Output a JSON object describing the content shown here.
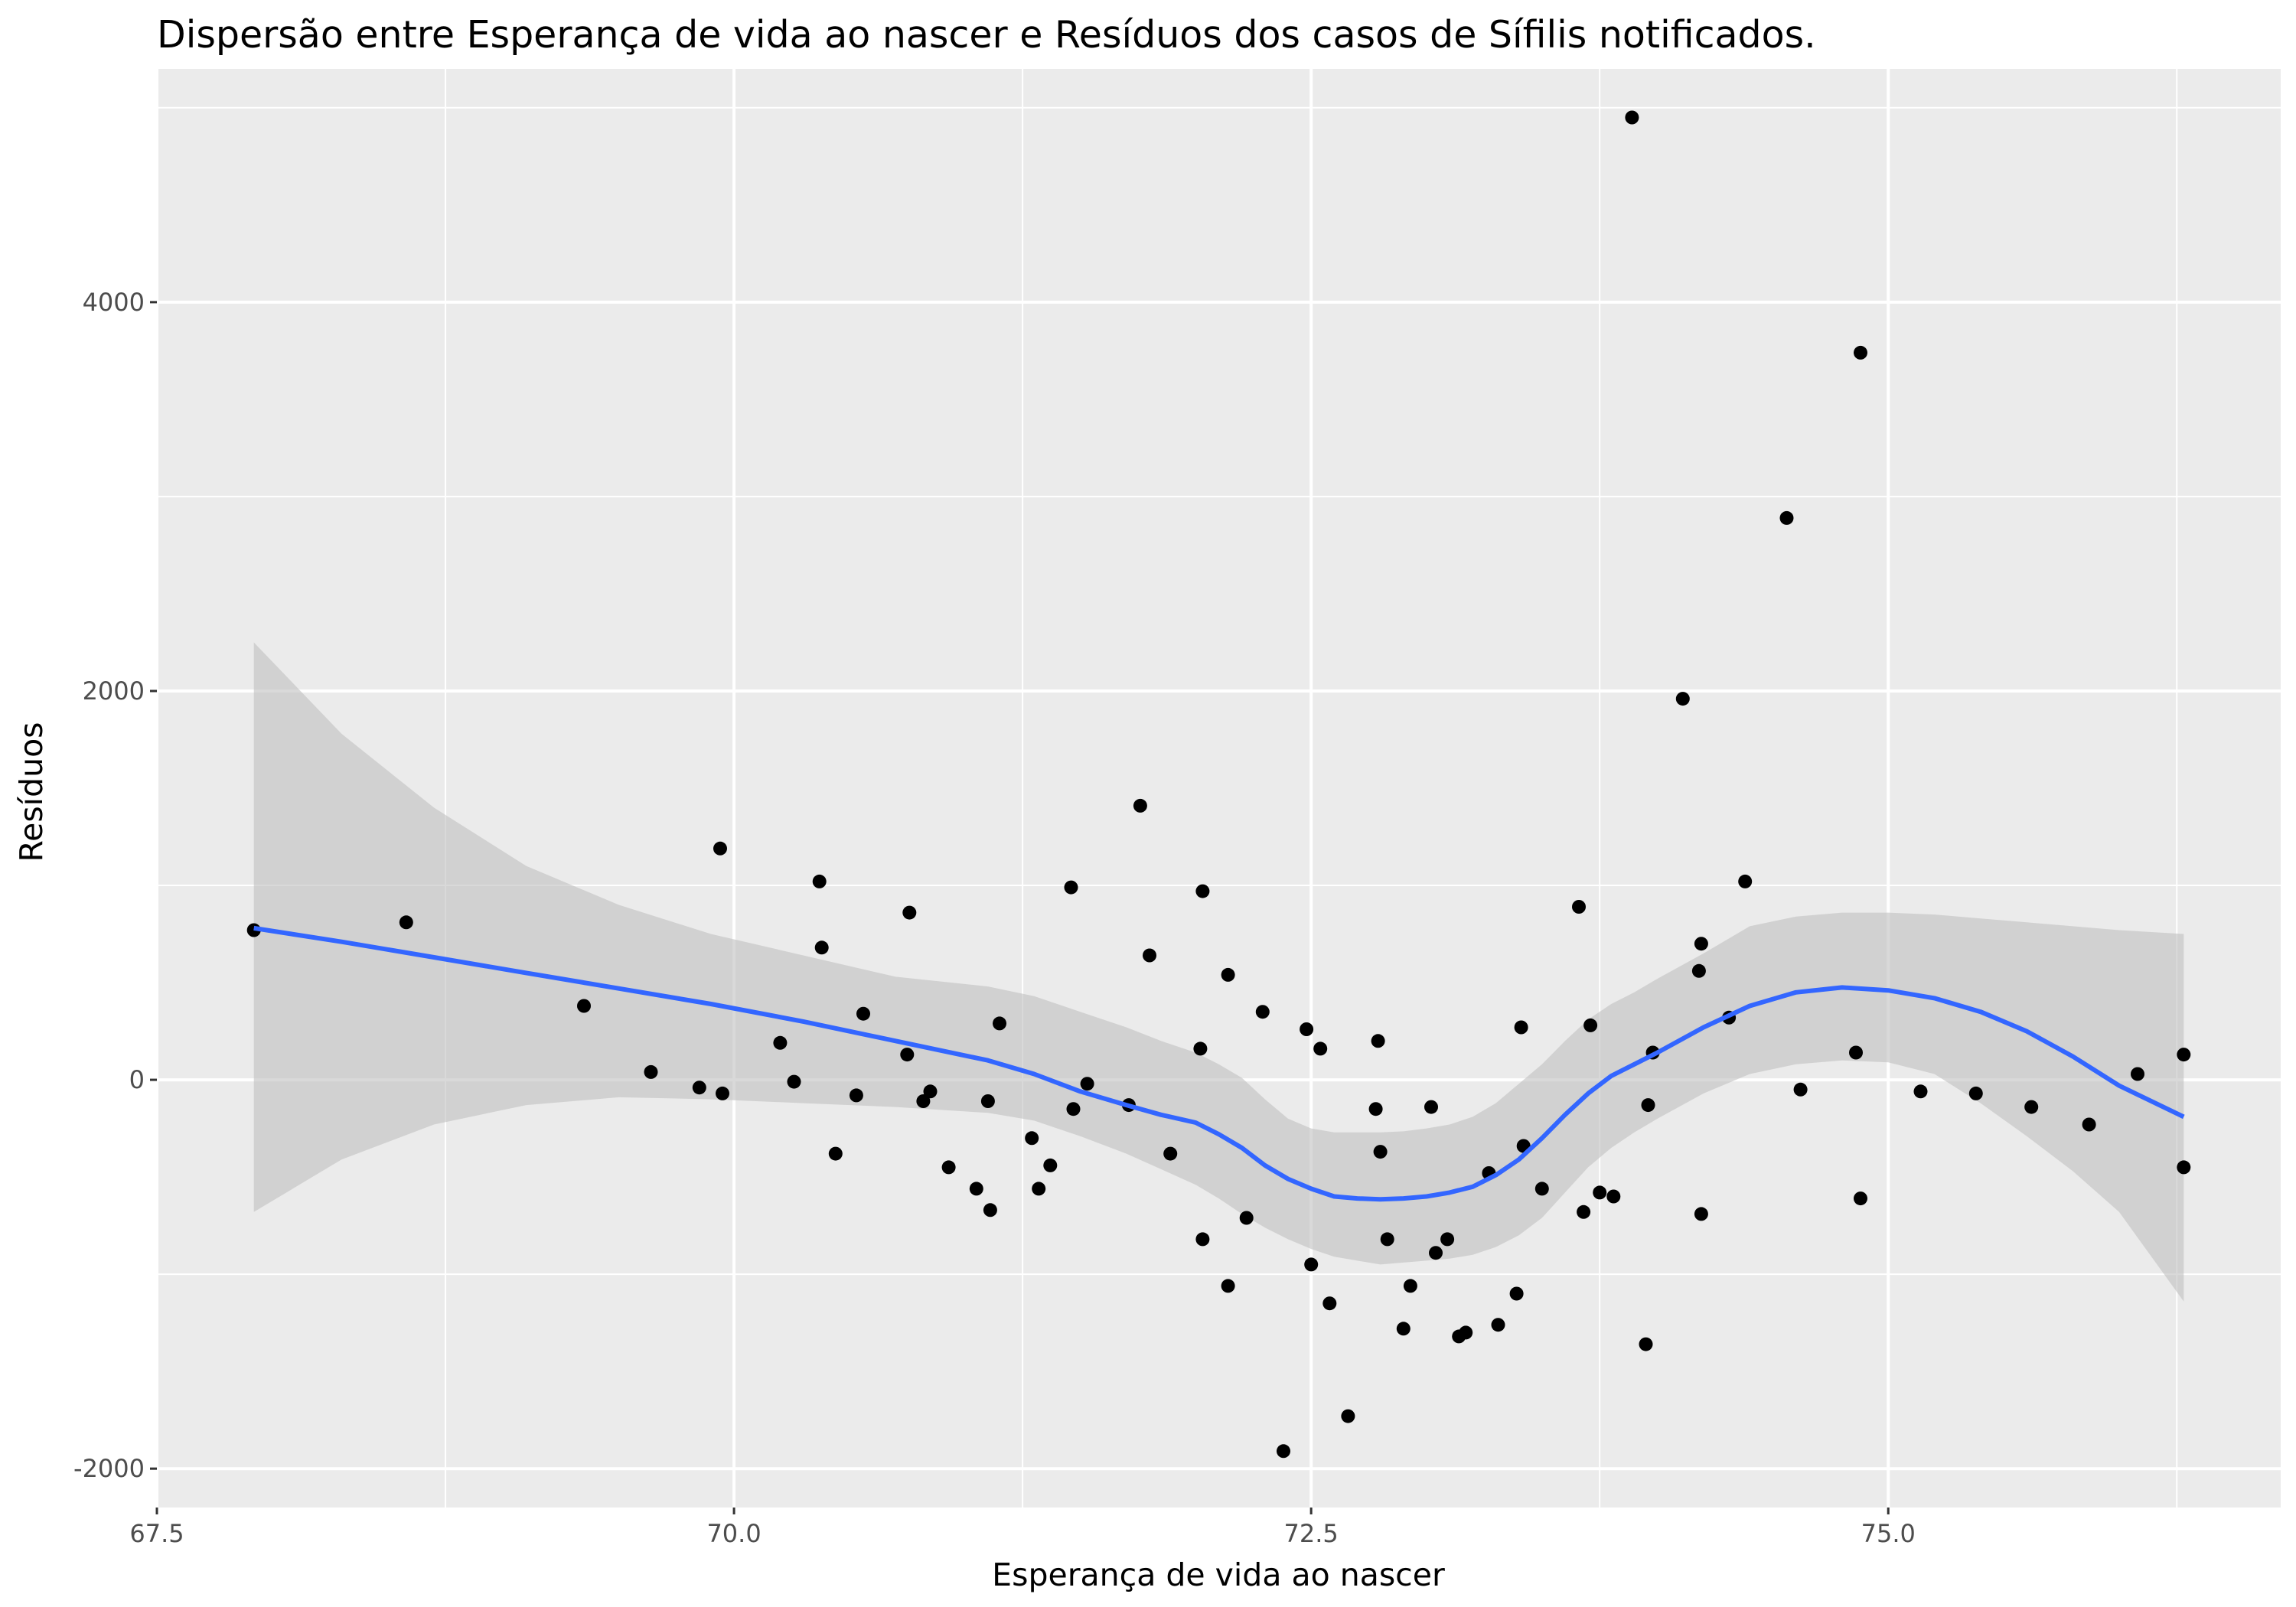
{
  "chart_data": {
    "type": "scatter",
    "title": "Dispersão entre Esperança de vida ao nascer e Resíduos dos casos de Sífilis notificados.",
    "xlabel": "Esperança de vida ao nascer",
    "ylabel": "Resíduos",
    "xlim": [
      67.5,
      76.7
    ],
    "ylim": [
      -2200,
      5200
    ],
    "x_ticks": [
      67.5,
      70.0,
      72.5,
      75.0
    ],
    "x_tick_labels": [
      "67.5",
      "70.0",
      "72.5",
      "75.0"
    ],
    "y_ticks": [
      -2000,
      0,
      2000,
      4000
    ],
    "y_tick_labels": [
      "-2000",
      "0",
      "2000",
      "4000"
    ],
    "grid": true,
    "colors": {
      "panel": "#ebebeb",
      "grid": "#ffffff",
      "points": "#000000",
      "smooth_line": "#3366ff",
      "ribbon": "#bfbfbf"
    },
    "points": [
      [
        67.92,
        770
      ],
      [
        68.58,
        810
      ],
      [
        69.35,
        380
      ],
      [
        69.64,
        40
      ],
      [
        69.85,
        -40
      ],
      [
        69.94,
        1190
      ],
      [
        69.95,
        -70
      ],
      [
        70.2,
        190
      ],
      [
        70.26,
        -10
      ],
      [
        70.37,
        1020
      ],
      [
        70.38,
        680
      ],
      [
        70.44,
        -380
      ],
      [
        70.53,
        -80
      ],
      [
        70.56,
        340
      ],
      [
        70.75,
        130
      ],
      [
        70.76,
        860
      ],
      [
        70.82,
        -110
      ],
      [
        70.85,
        -60
      ],
      [
        70.93,
        -450
      ],
      [
        71.05,
        -560
      ],
      [
        71.1,
        -110
      ],
      [
        71.11,
        -670
      ],
      [
        71.15,
        290
      ],
      [
        71.29,
        -300
      ],
      [
        71.32,
        -560
      ],
      [
        71.37,
        -440
      ],
      [
        71.46,
        990
      ],
      [
        71.47,
        -150
      ],
      [
        71.53,
        -20
      ],
      [
        71.71,
        -130
      ],
      [
        71.76,
        1410
      ],
      [
        71.8,
        640
      ],
      [
        71.89,
        -380
      ],
      [
        72.02,
        160
      ],
      [
        72.03,
        970
      ],
      [
        72.03,
        -820
      ],
      [
        72.14,
        540
      ],
      [
        72.14,
        -1060
      ],
      [
        72.22,
        -710
      ],
      [
        72.29,
        350
      ],
      [
        72.38,
        -1910
      ],
      [
        72.48,
        260
      ],
      [
        72.5,
        -950
      ],
      [
        72.54,
        160
      ],
      [
        72.58,
        -1150
      ],
      [
        72.66,
        -1730
      ],
      [
        72.78,
        -150
      ],
      [
        72.79,
        200
      ],
      [
        72.8,
        -370
      ],
      [
        72.83,
        -820
      ],
      [
        72.9,
        -1280
      ],
      [
        72.93,
        -1060
      ],
      [
        73.02,
        -140
      ],
      [
        73.04,
        -890
      ],
      [
        73.09,
        -820
      ],
      [
        73.14,
        -1320
      ],
      [
        73.17,
        -1300
      ],
      [
        73.27,
        -480
      ],
      [
        73.31,
        -1260
      ],
      [
        73.39,
        -1100
      ],
      [
        73.41,
        270
      ],
      [
        73.42,
        -340
      ],
      [
        73.5,
        -560
      ],
      [
        73.66,
        890
      ],
      [
        73.68,
        -680
      ],
      [
        73.71,
        280
      ],
      [
        73.75,
        -580
      ],
      [
        73.81,
        -600
      ],
      [
        73.89,
        4950
      ],
      [
        73.95,
        -1360
      ],
      [
        73.96,
        -130
      ],
      [
        73.98,
        140
      ],
      [
        74.11,
        1960
      ],
      [
        74.18,
        560
      ],
      [
        74.19,
        700
      ],
      [
        74.19,
        -690
      ],
      [
        74.31,
        320
      ],
      [
        74.38,
        1020
      ],
      [
        74.56,
        2890
      ],
      [
        74.62,
        -50
      ],
      [
        74.86,
        140
      ],
      [
        74.88,
        3740
      ],
      [
        74.88,
        -610
      ],
      [
        75.14,
        -60
      ],
      [
        75.38,
        -70
      ],
      [
        75.62,
        -140
      ],
      [
        75.87,
        -230
      ],
      [
        76.08,
        30
      ],
      [
        76.28,
        130
      ],
      [
        76.28,
        -450
      ]
    ],
    "smooth": {
      "x": [
        67.92,
        68.3,
        68.7,
        69.1,
        69.5,
        69.9,
        70.3,
        70.7,
        71.1,
        71.3,
        71.5,
        71.7,
        71.85,
        72.0,
        72.1,
        72.2,
        72.3,
        72.4,
        72.5,
        72.6,
        72.7,
        72.8,
        72.9,
        73.0,
        73.1,
        73.2,
        73.3,
        73.4,
        73.5,
        73.6,
        73.7,
        73.8,
        73.9,
        74.0,
        74.2,
        74.4,
        74.6,
        74.8,
        75.0,
        75.2,
        75.4,
        75.6,
        75.8,
        76.0,
        76.28
      ],
      "y": [
        780,
        710,
        630,
        550,
        470,
        390,
        300,
        200,
        100,
        30,
        -60,
        -130,
        -180,
        -220,
        -280,
        -350,
        -440,
        -510,
        -560,
        -600,
        -610,
        -615,
        -610,
        -600,
        -580,
        -550,
        -490,
        -410,
        -300,
        -180,
        -70,
        20,
        80,
        140,
        270,
        380,
        450,
        475,
        460,
        420,
        350,
        250,
        120,
        -30,
        -190
      ]
    },
    "ribbon": {
      "x": [
        67.92,
        68.3,
        68.7,
        69.1,
        69.5,
        69.9,
        70.3,
        70.7,
        71.1,
        71.3,
        71.5,
        71.7,
        71.85,
        72.0,
        72.1,
        72.2,
        72.3,
        72.4,
        72.5,
        72.6,
        72.7,
        72.8,
        72.9,
        73.0,
        73.1,
        73.2,
        73.3,
        73.4,
        73.5,
        73.6,
        73.7,
        73.8,
        73.9,
        74.0,
        74.2,
        74.4,
        74.6,
        74.8,
        75.0,
        75.2,
        75.4,
        75.6,
        75.8,
        76.0,
        76.28
      ],
      "upper": [
        2250,
        1780,
        1400,
        1100,
        900,
        750,
        640,
        530,
        480,
        430,
        350,
        270,
        200,
        140,
        80,
        10,
        -100,
        -200,
        -250,
        -270,
        -270,
        -270,
        -265,
        -250,
        -230,
        -190,
        -120,
        -20,
        80,
        200,
        310,
        390,
        450,
        520,
        650,
        790,
        840,
        860,
        860,
        850,
        830,
        810,
        790,
        770,
        750
      ],
      "lower": [
        -680,
        -410,
        -230,
        -130,
        -90,
        -100,
        -120,
        -140,
        -170,
        -210,
        -290,
        -380,
        -460,
        -540,
        -610,
        -690,
        -760,
        -820,
        -870,
        -910,
        -930,
        -950,
        -940,
        -930,
        -920,
        -900,
        -860,
        -800,
        -710,
        -580,
        -450,
        -350,
        -270,
        -200,
        -70,
        30,
        80,
        100,
        90,
        30,
        -120,
        -290,
        -470,
        -680,
        -1140
      ]
    }
  }
}
